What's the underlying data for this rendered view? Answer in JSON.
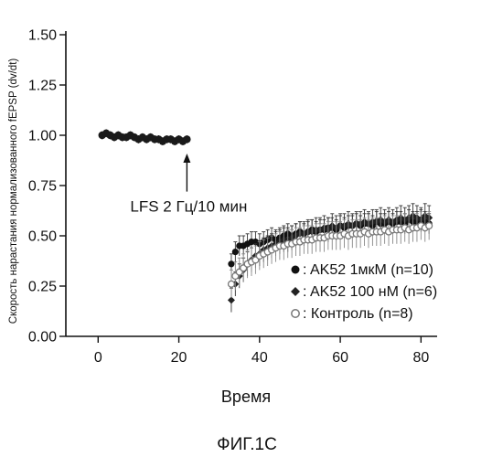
{
  "chart_data": {
    "type": "scatter",
    "xlabel": "Время",
    "ylabel": "Скорость нарастания нормализованного fEPSP (dv/dt)",
    "xlim": [
      -8,
      84
    ],
    "ylim": [
      0,
      1.5
    ],
    "x_ticks": [
      "0",
      "20",
      "40",
      "60",
      "80"
    ],
    "x_tick_values": [
      0,
      20,
      40,
      60,
      80
    ],
    "y_ticks": [
      "0.00",
      "0.25",
      "0.50",
      "0.75",
      "1.00",
      "1.25",
      "1.50"
    ],
    "y_tick_values": [
      0,
      0.25,
      0.5,
      0.75,
      1.0,
      1.25,
      1.5
    ],
    "annotation": {
      "text": "LFS 2 Гц/10 мин",
      "x": 22,
      "y_from": 0.9,
      "y_to": 0.72
    },
    "baseline": {
      "x": [
        1,
        2,
        3,
        4,
        5,
        6,
        7,
        8,
        9,
        10,
        11,
        12,
        13,
        14,
        15,
        16,
        17,
        18,
        19,
        20,
        21,
        22
      ],
      "y": [
        1.0,
        1.01,
        1.0,
        0.99,
        1.0,
        0.99,
        0.99,
        1.0,
        0.99,
        0.98,
        0.99,
        0.98,
        0.99,
        0.98,
        0.98,
        0.97,
        0.98,
        0.98,
        0.97,
        0.98,
        0.97,
        0.98
      ]
    },
    "series": [
      {
        "name": "AK52 1мкМ (n=10)",
        "marker": "circle",
        "x": [
          33,
          34,
          35,
          36,
          37,
          38,
          39,
          40,
          41,
          42,
          43,
          44,
          45,
          46,
          47,
          48,
          49,
          50,
          51,
          52,
          53,
          54,
          55,
          56,
          57,
          58,
          59,
          60,
          61,
          62,
          63,
          64,
          65,
          66,
          67,
          68,
          69,
          70,
          71,
          72,
          73,
          74,
          75,
          76,
          77,
          78,
          79,
          80,
          81,
          82
        ],
        "y": [
          0.36,
          0.42,
          0.45,
          0.45,
          0.46,
          0.47,
          0.47,
          0.46,
          0.47,
          0.48,
          0.49,
          0.48,
          0.49,
          0.5,
          0.51,
          0.5,
          0.51,
          0.52,
          0.51,
          0.52,
          0.53,
          0.52,
          0.53,
          0.53,
          0.54,
          0.54,
          0.53,
          0.55,
          0.54,
          0.55,
          0.55,
          0.56,
          0.55,
          0.56,
          0.56,
          0.55,
          0.57,
          0.56,
          0.56,
          0.57,
          0.56,
          0.57,
          0.57,
          0.56,
          0.58,
          0.57,
          0.57,
          0.58,
          0.57,
          0.56
        ],
        "err": 0.05
      },
      {
        "name": "AK52 100 нМ  (n=6)",
        "marker": "diamond",
        "x": [
          33,
          34,
          35,
          36,
          37,
          38,
          39,
          40,
          41,
          42,
          43,
          44,
          45,
          46,
          47,
          48,
          49,
          50,
          51,
          52,
          53,
          54,
          55,
          56,
          57,
          58,
          59,
          60,
          61,
          62,
          63,
          64,
          65,
          66,
          67,
          68,
          69,
          70,
          71,
          72,
          73,
          74,
          75,
          76,
          77,
          78,
          79,
          80,
          81,
          82
        ],
        "y": [
          0.18,
          0.26,
          0.3,
          0.33,
          0.36,
          0.38,
          0.4,
          0.41,
          0.43,
          0.44,
          0.45,
          0.46,
          0.47,
          0.48,
          0.48,
          0.49,
          0.5,
          0.51,
          0.51,
          0.52,
          0.52,
          0.53,
          0.53,
          0.54,
          0.53,
          0.55,
          0.54,
          0.55,
          0.55,
          0.56,
          0.55,
          0.56,
          0.56,
          0.57,
          0.56,
          0.57,
          0.57,
          0.58,
          0.57,
          0.58,
          0.57,
          0.58,
          0.59,
          0.58,
          0.59,
          0.6,
          0.59,
          0.58,
          0.6,
          0.59
        ],
        "err": 0.06
      },
      {
        "name": "Контроль (n=8)",
        "marker": "open-circle",
        "x": [
          33,
          34,
          35,
          36,
          37,
          38,
          39,
          40,
          41,
          42,
          43,
          44,
          45,
          46,
          47,
          48,
          49,
          50,
          51,
          52,
          53,
          54,
          55,
          56,
          57,
          58,
          59,
          60,
          61,
          62,
          63,
          64,
          65,
          66,
          67,
          68,
          69,
          70,
          71,
          72,
          73,
          74,
          75,
          76,
          77,
          78,
          79,
          80,
          81,
          82
        ],
        "y": [
          0.26,
          0.3,
          0.32,
          0.34,
          0.36,
          0.37,
          0.38,
          0.4,
          0.41,
          0.42,
          0.43,
          0.44,
          0.45,
          0.45,
          0.46,
          0.46,
          0.47,
          0.47,
          0.48,
          0.48,
          0.48,
          0.49,
          0.49,
          0.49,
          0.5,
          0.5,
          0.5,
          0.5,
          0.51,
          0.5,
          0.51,
          0.51,
          0.51,
          0.52,
          0.51,
          0.52,
          0.52,
          0.52,
          0.53,
          0.52,
          0.53,
          0.53,
          0.53,
          0.54,
          0.53,
          0.54,
          0.54,
          0.55,
          0.54,
          0.55
        ],
        "err": 0.07
      }
    ],
    "legend_placement": "bottom-right",
    "grid": false
  },
  "figure": {
    "caption": "ФИГ.1С"
  }
}
